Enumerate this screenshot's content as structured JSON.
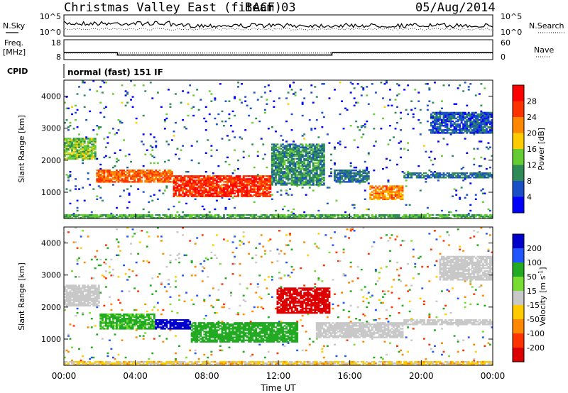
{
  "header": {
    "title": "Christmas Valley East (fitACF)",
    "beam": "Beam 03",
    "date": "05/Aug/2014"
  },
  "noise_panel": {
    "left_label": "N.Sky",
    "left_ticks": [
      "10^5",
      "10^0"
    ],
    "right_label": "N.Search",
    "right_ticks": [
      "10^5",
      "10^0"
    ]
  },
  "freq_panel": {
    "left_label_line1": "Freq.",
    "left_label_line2": "[MHz]",
    "left_ticks": [
      "18",
      "8"
    ],
    "right_label": "Nave",
    "right_ticks": [
      "60",
      "0"
    ],
    "freq_mhz": [
      {
        "start": 0,
        "end": 3,
        "value": 11.5
      },
      {
        "start": 3,
        "end": 15,
        "value": 10.3
      },
      {
        "start": 15,
        "end": 24,
        "value": 11.5
      }
    ],
    "nave": 20
  },
  "cpid": {
    "label": "CPID",
    "mode": "normal (fast) 151 IF"
  },
  "chart_data": [
    {
      "type": "heatmap",
      "name": "power",
      "ylabel": "Slant Range [km]",
      "ylim": [
        180,
        4500
      ],
      "yticks": [
        1000,
        2000,
        3000,
        4000
      ],
      "xlim": [
        0,
        24
      ],
      "colorbar_label": "Power [dB]",
      "colorbar_ticks": [
        "4",
        "8",
        "12",
        "16",
        "20",
        "24",
        "28"
      ],
      "colorbar_range": [
        0,
        30
      ],
      "colors": [
        "#0000ff",
        "#1a4fc8",
        "#2e8b57",
        "#66cc33",
        "#ffcc00",
        "#ff8800",
        "#ff3300",
        "#ff0000"
      ],
      "features": [
        {
          "t": [
            0.0,
            1.8
          ],
          "r": [
            2000,
            2700
          ],
          "p": 14
        },
        {
          "t": [
            1.8,
            6.0
          ],
          "r": [
            1300,
            1700
          ],
          "p": 24
        },
        {
          "t": [
            6.0,
            11.5
          ],
          "r": [
            850,
            1500
          ],
          "p": 27
        },
        {
          "t": [
            11.5,
            14.5
          ],
          "r": [
            1200,
            2500
          ],
          "p": 10
        },
        {
          "t": [
            15.0,
            17.0
          ],
          "r": [
            1300,
            1700
          ],
          "p": 8
        },
        {
          "t": [
            17.0,
            19.0
          ],
          "r": [
            750,
            1200
          ],
          "p": 22
        },
        {
          "t": [
            19.0,
            24.0
          ],
          "r": [
            1400,
            1600
          ],
          "p": 8
        },
        {
          "t": [
            20.5,
            24.0
          ],
          "r": [
            2800,
            3500
          ],
          "p": 6
        },
        {
          "t": [
            0.0,
            24.0
          ],
          "r": [
            180,
            300
          ],
          "p": 12
        }
      ]
    },
    {
      "type": "heatmap",
      "name": "velocity",
      "xlabel": "Time UT",
      "ylabel": "Slant Range [km]",
      "ylim": [
        180,
        4500
      ],
      "yticks": [
        1000,
        2000,
        3000,
        4000
      ],
      "xlim": [
        0,
        24
      ],
      "xticks": [
        "00:00",
        "04:00",
        "08:00",
        "12:00",
        "16:00",
        "20:00",
        "00:00"
      ],
      "colorbar_label": "Velocity [m s^-1]",
      "colorbar_label_main": "Velocity [m s",
      "colorbar_label_sup": "-1",
      "colorbar_label_end": "]",
      "colorbar_ticks": [
        "200",
        "100",
        "50",
        "15",
        "-15",
        "-50",
        "-100",
        "-200"
      ],
      "colors": [
        "#0000cc",
        "#2255ff",
        "#22aa22",
        "#77dd33",
        "#c8c8c8",
        "#ffcc00",
        "#ff8800",
        "#ff3300",
        "#dd0000"
      ],
      "features": [
        {
          "t": [
            0.0,
            2.0
          ],
          "r": [
            2000,
            2700
          ],
          "v": 0
        },
        {
          "t": [
            2.0,
            5.0
          ],
          "r": [
            1300,
            1800
          ],
          "v": 40
        },
        {
          "t": [
            5.0,
            7.0
          ],
          "r": [
            1300,
            1600
          ],
          "v": 200
        },
        {
          "t": [
            7.0,
            13.0
          ],
          "r": [
            900,
            1500
          ],
          "v": 60
        },
        {
          "t": [
            11.8,
            14.8
          ],
          "r": [
            1800,
            2600
          ],
          "v": -220
        },
        {
          "t": [
            14.0,
            19.0
          ],
          "r": [
            1000,
            1500
          ],
          "v": 0
        },
        {
          "t": [
            19.0,
            24.0
          ],
          "r": [
            1400,
            1600
          ],
          "v": 0
        },
        {
          "t": [
            21.0,
            24.0
          ],
          "r": [
            2800,
            3600
          ],
          "v": 0
        },
        {
          "t": [
            0.0,
            24.0
          ],
          "r": [
            180,
            300
          ],
          "v": -20
        }
      ]
    }
  ]
}
